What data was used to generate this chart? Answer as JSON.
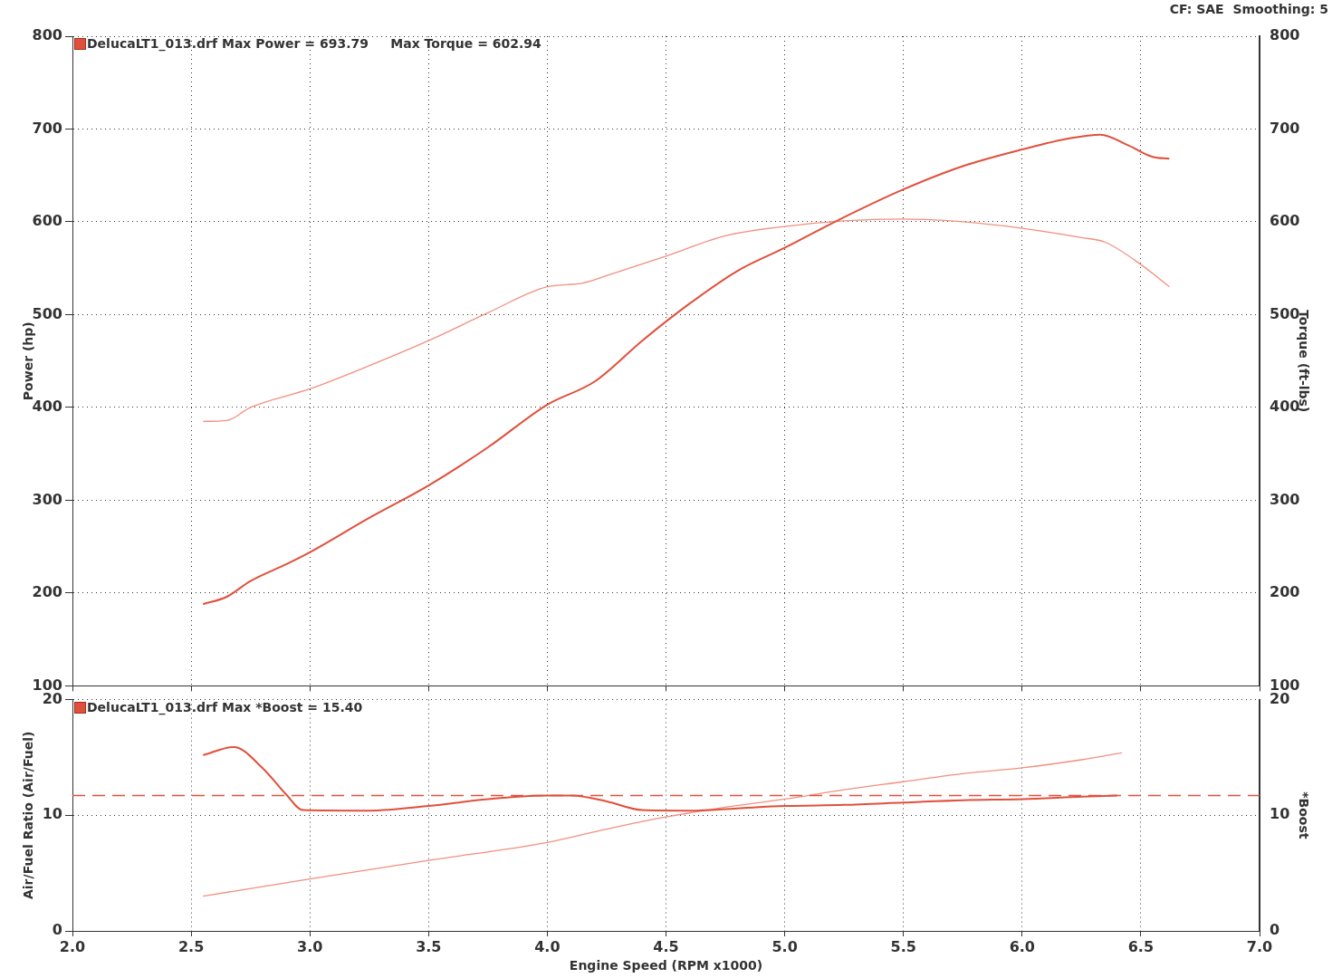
{
  "chart_data": [
    {
      "type": "line",
      "ylabel": "Power (hp)",
      "y2label": "Torque (ft-lbs)",
      "annotations": [
        "DelucaLT1_013.drf Max Power = 693.79     Max Torque = 602.94",
        "CF: SAE  Smoothing: 5"
      ],
      "xlim": [
        2,
        7
      ],
      "xticks": [
        2,
        2.5,
        3,
        3.5,
        4,
        4.5,
        5,
        5.5,
        6,
        6.5,
        7
      ],
      "ylim": [
        100,
        800
      ],
      "yticks": [
        100,
        200,
        300,
        400,
        500,
        600,
        700,
        800
      ],
      "y2lim": [
        100,
        800
      ],
      "y2ticks": [
        100,
        200,
        300,
        400,
        500,
        600,
        700,
        800
      ],
      "tick_labels": "y",
      "grid": true,
      "marker": "none",
      "line_style": "solid",
      "series": [
        {
          "color": "#e0503c",
          "x": [
            2.55,
            2.65,
            2.75,
            2.9,
            3.0,
            3.25,
            3.5,
            3.75,
            4.0,
            4.2,
            4.4,
            4.6,
            4.8,
            5.0,
            5.25,
            5.5,
            5.75,
            6.0,
            6.2,
            6.33,
            6.45,
            6.55,
            6.62
          ],
          "values": [
            188,
            196,
            213,
            231,
            244,
            281,
            316,
            357,
            403,
            428,
            472,
            512,
            547,
            572,
            605,
            635,
            660,
            678,
            690,
            694,
            682,
            670,
            668
          ]
        },
        {
          "color": "#f09080",
          "axis": "y2",
          "x": [
            2.55,
            2.65,
            2.75,
            3.0,
            3.25,
            3.5,
            3.75,
            4.0,
            4.15,
            4.25,
            4.5,
            4.75,
            5.0,
            5.25,
            5.5,
            5.75,
            6.0,
            6.25,
            6.35,
            6.5,
            6.62
          ],
          "values": [
            385,
            386,
            400,
            420,
            445,
            472,
            502,
            530,
            534,
            542,
            563,
            585,
            595,
            601,
            603,
            600,
            593,
            583,
            578,
            554,
            530
          ]
        }
      ]
    },
    {
      "type": "line",
      "xlabel": "Engine Speed (RPM x1000)",
      "ylabel": "Air/Fuel Ratio (Air/Fuel)",
      "y2label": "*Boost",
      "annotations": [
        "DelucaLT1_013.drf Max *Boost = 15.40"
      ],
      "xlim": [
        2,
        7
      ],
      "xticks": [
        {
          "value": 2,
          "label": "2.0"
        },
        {
          "value": 2.5,
          "label": "2.5"
        },
        {
          "value": 3,
          "label": "3.0"
        },
        {
          "value": 3.5,
          "label": "3.5"
        },
        {
          "value": 4,
          "label": "4.0"
        },
        {
          "value": 4.5,
          "label": "4.5"
        },
        {
          "value": 5,
          "label": "5.0"
        },
        {
          "value": 5.5,
          "label": "5.5"
        },
        {
          "value": 6,
          "label": "6.0"
        },
        {
          "value": 6.5,
          "label": "6.5"
        },
        {
          "value": 7,
          "label": "7.0"
        }
      ],
      "ylim": [
        0,
        20
      ],
      "yticks": [
        0,
        10,
        20
      ],
      "y2lim": [
        0,
        20
      ],
      "y2ticks": [
        0,
        10,
        20
      ],
      "grid": true,
      "marker": "none",
      "line_style": "solid",
      "ref_lines": [
        {
          "axis": "y",
          "value": 11.7,
          "color": "#e0503c",
          "line_style": "dashed"
        }
      ],
      "series": [
        {
          "color": "#e0503c",
          "x": [
            2.55,
            2.68,
            2.8,
            2.9,
            2.97,
            3.25,
            3.5,
            3.75,
            4.0,
            4.1,
            4.25,
            4.4,
            4.6,
            4.8,
            5.0,
            5.25,
            5.5,
            5.75,
            6.0,
            6.25,
            6.4
          ],
          "values": [
            15.2,
            15.9,
            14.1,
            11.8,
            10.45,
            10.4,
            10.8,
            11.4,
            11.7,
            11.7,
            11.2,
            10.45,
            10.4,
            10.6,
            10.8,
            10.9,
            11.1,
            11.3,
            11.4,
            11.6,
            11.7
          ]
        },
        {
          "color": "#f09080",
          "axis": "y2",
          "x": [
            2.55,
            3.0,
            3.5,
            4.0,
            4.25,
            4.5,
            4.75,
            5.0,
            5.25,
            5.5,
            5.75,
            6.0,
            6.25,
            6.42
          ],
          "values": [
            3.0,
            4.5,
            6.1,
            7.65,
            8.8,
            9.85,
            10.7,
            11.4,
            12.2,
            12.9,
            13.6,
            14.1,
            14.8,
            15.4
          ]
        }
      ]
    }
  ]
}
